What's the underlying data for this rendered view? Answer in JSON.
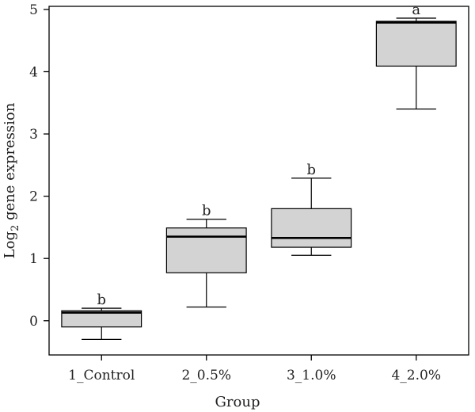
{
  "chart_data": {
    "type": "box",
    "title": "",
    "xlabel": "Group",
    "ylabel": {
      "prefix": "Log",
      "subscript": "2",
      "suffix": " gene expression"
    },
    "ylim": [
      -0.55,
      5.05
    ],
    "yticks": [
      "0",
      "1",
      "2",
      "3",
      "4",
      "5"
    ],
    "grid": false,
    "box_fill": "#d3d3d3",
    "box_stroke": "#000000",
    "groups": [
      {
        "name": "1_Control",
        "whisker_low": -0.3,
        "q1": -0.1,
        "median": 0.13,
        "q3": 0.16,
        "whisker_high": 0.2,
        "significance": "b"
      },
      {
        "name": "2_0.5%",
        "whisker_low": 0.22,
        "q1": 0.77,
        "median": 1.35,
        "q3": 1.49,
        "whisker_high": 1.63,
        "significance": "b"
      },
      {
        "name": "3_1.0%",
        "whisker_low": 1.05,
        "q1": 1.18,
        "median": 1.33,
        "q3": 1.8,
        "whisker_high": 2.29,
        "significance": "b"
      },
      {
        "name": "4_2.0%",
        "whisker_low": 3.4,
        "q1": 4.09,
        "median": 4.79,
        "q3": 4.81,
        "whisker_high": 4.86,
        "significance": "a"
      }
    ]
  }
}
